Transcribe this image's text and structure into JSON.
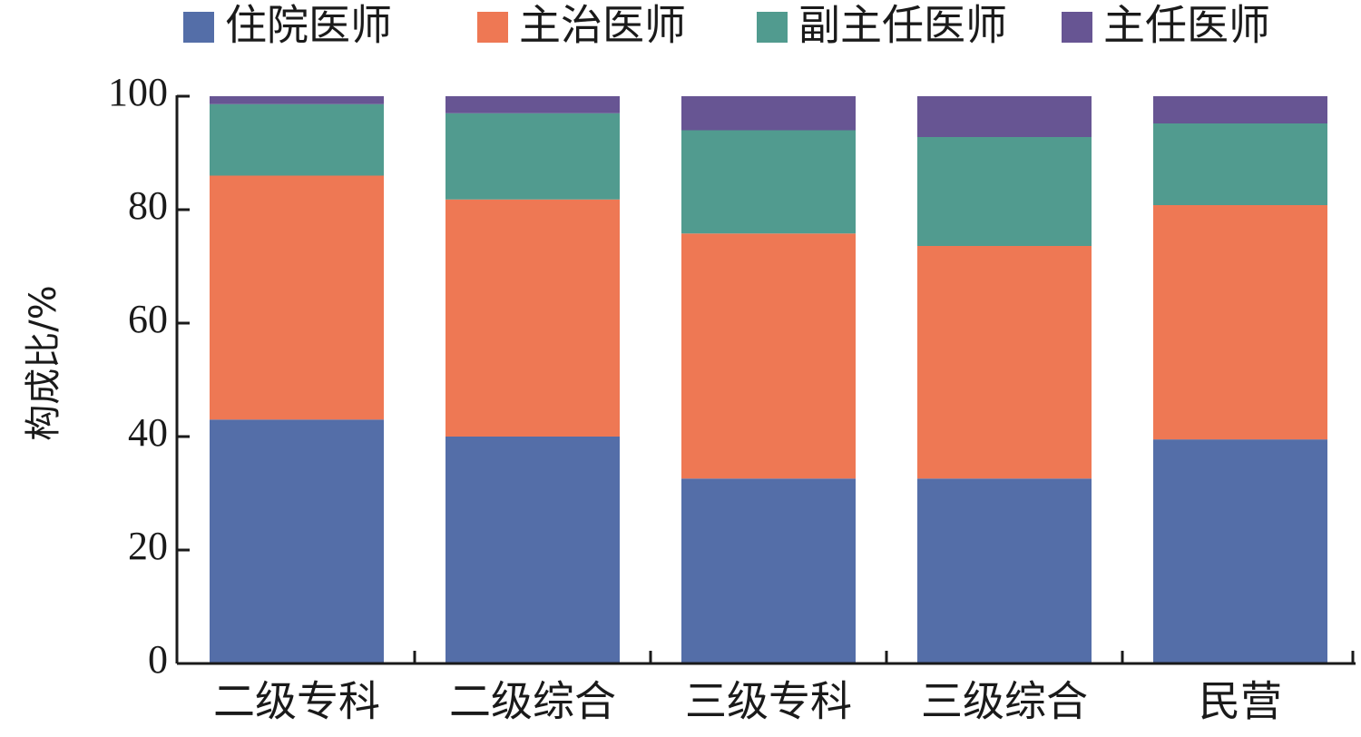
{
  "chart_data": {
    "type": "bar",
    "stacked": true,
    "title": "",
    "xlabel": "",
    "ylabel": "构成比/%",
    "ylim": [
      0,
      100
    ],
    "yticks": [
      0,
      20,
      40,
      60,
      80,
      100
    ],
    "categories": [
      "二级专科",
      "二级综合",
      "三级专科",
      "三级综合",
      "民营"
    ],
    "series": [
      {
        "name": "住院医师",
        "color": "#546ea8",
        "values": [
          43.0,
          40.0,
          32.6,
          32.6,
          39.5
        ]
      },
      {
        "name": "主治医师",
        "color": "#ee7854",
        "values": [
          43.0,
          41.8,
          43.2,
          41.0,
          41.3
        ]
      },
      {
        "name": "副主任医师",
        "color": "#519b8f",
        "values": [
          12.6,
          15.2,
          18.2,
          19.2,
          14.4
        ]
      },
      {
        "name": "主任医师",
        "color": "#675593",
        "values": [
          1.4,
          3.0,
          6.0,
          7.2,
          4.8
        ]
      }
    ],
    "legend_position": "top",
    "grid": false
  }
}
